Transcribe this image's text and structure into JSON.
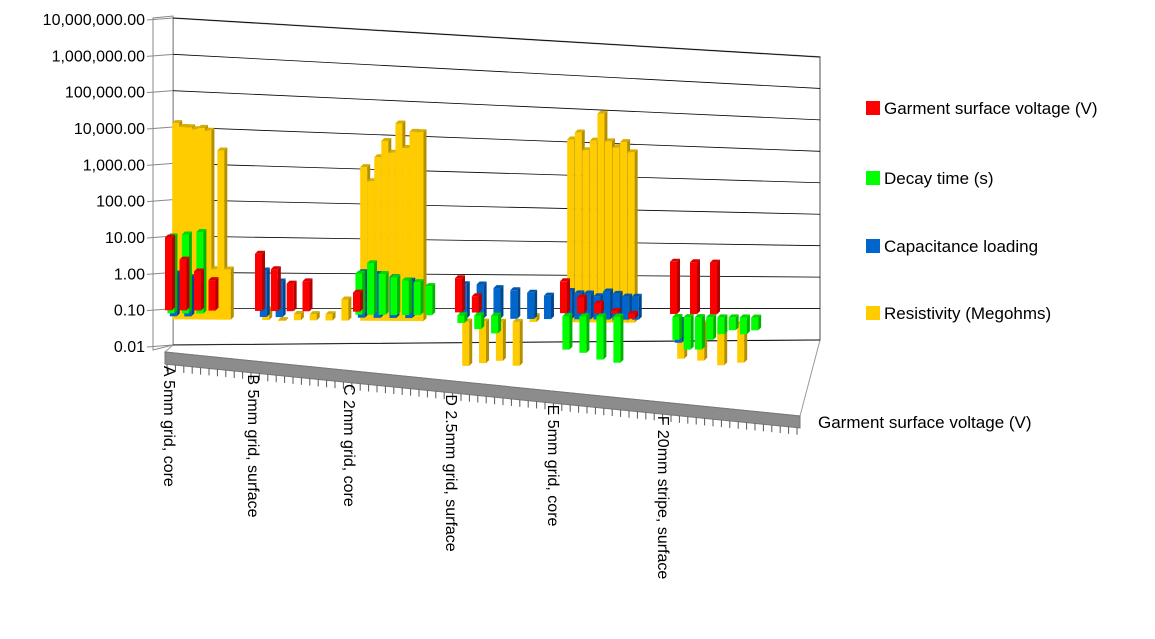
{
  "chart_data": {
    "type": "bar",
    "subtype": "3d-clustered-column",
    "y_scale": "log",
    "ylim": [
      0.01,
      10000000
    ],
    "y_ticks": [
      "0.01",
      "0.10",
      "1.00",
      "10.00",
      "100.00",
      "1,000.00",
      "10,000.00",
      "100,000.00",
      "1,000,000.00",
      "10,000,000.00"
    ],
    "categories": [
      "A 5mm grid, core",
      "B 5mm grid, surface",
      "C 2mm grid, core",
      "D 2.5mm grid, surface",
      "E 5mm grid, core",
      "F 20mm stripe, surface"
    ],
    "depth_axis_label": "Garment surface voltage (V)",
    "legend_position": "right",
    "grid": true,
    "series": [
      {
        "name": "Garment surface voltage (V)",
        "color": "#FF0000",
        "groups": [
          [
            100,
            25,
            12,
            7
          ],
          [
            40,
            15,
            6,
            7
          ],
          [
            3.5
          ],
          [
            10,
            3
          ],
          [
            9,
            3,
            2,
            1.2,
            0.7
          ],
          [
            40,
            40,
            40
          ]
        ]
      },
      {
        "name": "Decay time (s)",
        "color": "#00FF00",
        "groups": [
          [
            130,
            150,
            180
          ],
          [],
          [
            15,
            30,
            15,
            12,
            10,
            9,
            7
          ],
          [
            0.6,
            0.4,
            0.3
          ],
          [
            0.1,
            0.08,
            0.05,
            0.04
          ],
          [
            0.2,
            0.1,
            0.1,
            0.2,
            0.3,
            0.4,
            0.3,
            0.4
          ]
        ]
      },
      {
        "name": "Capacitance loading",
        "color": "#0066CC",
        "groups": [
          [
            15,
            12
          ],
          [
            20,
            10
          ],
          [
            20,
            18,
            15,
            12
          ],
          [
            10,
            10,
            8,
            7,
            6,
            5
          ],
          [
            7,
            6,
            6,
            5,
            7,
            6,
            5,
            5
          ],
          [
            0.2,
            0.2
          ]
        ]
      },
      {
        "name": "Resistivity (Megohms)",
        "color": "#FFCC00",
        "groups": [
          [
            250000,
            200000,
            200000,
            180000,
            200000,
            170000,
            25,
            50000,
            25
          ],
          [
            2,
            1,
            1.5,
            1.5,
            1.5,
            4
          ],
          [
            25000,
            10000,
            50000,
            150000,
            70000,
            500000,
            100000,
            300000,
            300000
          ],
          [
            0.05,
            0.06,
            0.07,
            0.05,
            1.5
          ],
          [
            300000,
            500000,
            150000,
            300000,
            2000000,
            300000,
            200000,
            300000,
            150000
          ],
          [
            0.08,
            0.07,
            0.05,
            0.06
          ]
        ]
      }
    ]
  }
}
